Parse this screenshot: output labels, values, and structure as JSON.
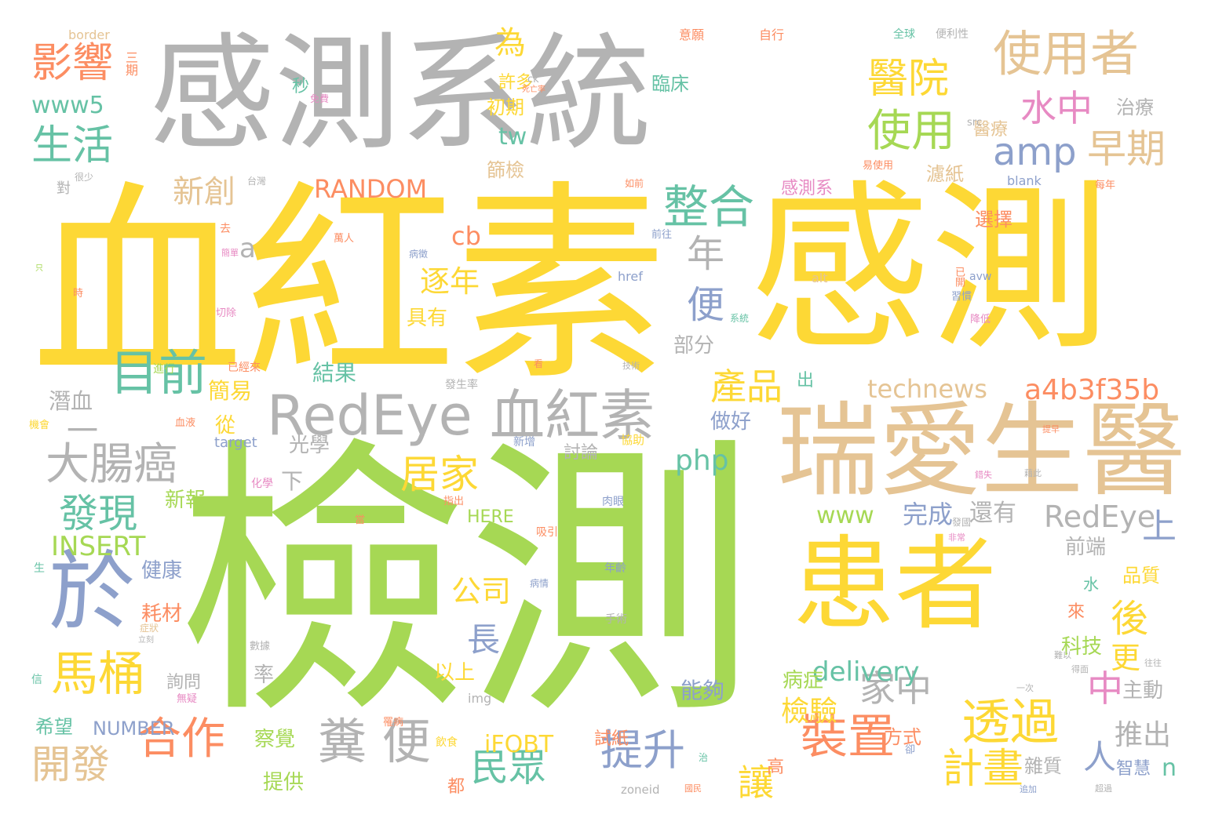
{
  "colors": {
    "yellow": "#fdd835",
    "green": "#a6d854",
    "gray": "#b3b3b3",
    "tan": "#e5c494",
    "orange": "#fc8d62",
    "blue": "#8da0cb",
    "teal": "#66c2a5",
    "pink": "#e78ac3"
  },
  "words": [
    {
      "text": "檢測",
      "c": "green"
    },
    {
      "text": "血紅素",
      "c": "yellow"
    },
    {
      "text": "感測",
      "c": "yellow"
    },
    {
      "text": "感測系統",
      "c": "gray"
    },
    {
      "text": "瑞愛生醫",
      "c": "tan"
    },
    {
      "text": "患者",
      "c": "yellow"
    },
    {
      "text": "RedEye 血紅素",
      "c": "gray"
    },
    {
      "text": "於",
      "c": "blue"
    },
    {
      "text": "使用者",
      "c": "tan"
    },
    {
      "text": "一",
      "c": "gray"
    },
    {
      "text": "目前",
      "c": "teal"
    },
    {
      "text": "大腸癌",
      "c": "gray"
    },
    {
      "text": "糞 便",
      "c": "gray"
    },
    {
      "text": "裝置",
      "c": "orange"
    },
    {
      "text": "透過",
      "c": "yellow"
    },
    {
      "text": "馬桶",
      "c": "yellow"
    },
    {
      "text": "合作",
      "c": "orange"
    },
    {
      "text": "使用",
      "c": "green"
    },
    {
      "text": "整合",
      "c": "teal"
    },
    {
      "text": "影響",
      "c": "orange"
    },
    {
      "text": "生活",
      "c": "teal"
    },
    {
      "text": "醫院",
      "c": "yellow"
    },
    {
      "text": "早期",
      "c": "tan"
    },
    {
      "text": "水中",
      "c": "pink"
    },
    {
      "text": "amp",
      "c": "blue"
    },
    {
      "text": "居家",
      "c": "yellow"
    },
    {
      "text": "提升",
      "c": "blue"
    },
    {
      "text": "民眾",
      "c": "teal"
    },
    {
      "text": "開發",
      "c": "tan"
    },
    {
      "text": "發現",
      "c": "teal"
    },
    {
      "text": "計畫",
      "c": "yellow"
    },
    {
      "text": "產品",
      "c": "yellow"
    },
    {
      "text": "年",
      "c": "gray"
    },
    {
      "text": "新創",
      "c": "tan"
    },
    {
      "text": "家中",
      "c": "gray"
    },
    {
      "text": "a4b3f35b",
      "c": "orange"
    },
    {
      "text": "technews",
      "c": "tan"
    },
    {
      "text": "RedEye",
      "c": "gray"
    },
    {
      "text": "上",
      "c": "blue"
    },
    {
      "text": "中",
      "c": "pink"
    },
    {
      "text": "人",
      "c": "blue"
    },
    {
      "text": "後",
      "c": "yellow"
    },
    {
      "text": "更",
      "c": "yellow"
    },
    {
      "text": "php",
      "c": "teal"
    },
    {
      "text": "delivery",
      "c": "teal"
    },
    {
      "text": "www5",
      "c": "teal"
    },
    {
      "text": "INSERT",
      "c": "green"
    },
    {
      "text": "RANDOM",
      "c": "orange"
    },
    {
      "text": "www",
      "c": "green"
    },
    {
      "text": "公司",
      "c": "yellow"
    },
    {
      "text": "長",
      "c": "blue"
    },
    {
      "text": "逐年",
      "c": "yellow"
    },
    {
      "text": "為",
      "c": "yellow"
    },
    {
      "text": "便",
      "c": "blue"
    },
    {
      "text": "tw",
      "c": "teal"
    },
    {
      "text": "cb",
      "c": "orange"
    },
    {
      "text": "a",
      "c": "gray"
    },
    {
      "text": "讓",
      "c": "yellow"
    },
    {
      "text": "檢驗",
      "c": "yellow"
    },
    {
      "text": "推出",
      "c": "gray"
    },
    {
      "text": "完成",
      "c": "blue"
    },
    {
      "text": "還有",
      "c": "gray"
    },
    {
      "text": "n",
      "c": "teal"
    },
    {
      "text": "NUMBER",
      "c": "blue"
    },
    {
      "text": "iFOBT",
      "c": "yellow"
    },
    {
      "text": "HERE",
      "c": "green"
    },
    {
      "text": "健康",
      "c": "blue"
    },
    {
      "text": "耗材",
      "c": "orange"
    },
    {
      "text": "新報",
      "c": "green"
    },
    {
      "text": "潛血",
      "c": "gray"
    },
    {
      "text": "簡易",
      "c": "yellow"
    },
    {
      "text": "結果",
      "c": "teal"
    },
    {
      "text": "具有",
      "c": "yellow"
    },
    {
      "text": "光學",
      "c": "gray"
    },
    {
      "text": "部分",
      "c": "gray"
    },
    {
      "text": "做好",
      "c": "blue"
    },
    {
      "text": "討論",
      "c": "gray"
    },
    {
      "text": "出",
      "c": "teal"
    },
    {
      "text": "從",
      "c": "yellow"
    },
    {
      "text": "下",
      "c": "gray"
    },
    {
      "text": "以上",
      "c": "yellow"
    },
    {
      "text": "率",
      "c": "gray"
    },
    {
      "text": "能夠",
      "c": "blue"
    },
    {
      "text": "病症",
      "c": "green"
    },
    {
      "text": "察覺",
      "c": "green"
    },
    {
      "text": "提供",
      "c": "green"
    },
    {
      "text": "都",
      "c": "orange"
    },
    {
      "text": "高",
      "c": "orange"
    },
    {
      "text": "方式",
      "c": "orange"
    },
    {
      "text": "科技",
      "c": "green"
    },
    {
      "text": "來",
      "c": "orange"
    },
    {
      "text": "水",
      "c": "teal"
    },
    {
      "text": "品質",
      "c": "yellow"
    },
    {
      "text": "前端",
      "c": "gray"
    },
    {
      "text": "主動",
      "c": "gray"
    },
    {
      "text": "雜質",
      "c": "gray"
    },
    {
      "text": "智慧",
      "c": "blue"
    },
    {
      "text": "詢問",
      "c": "gray"
    },
    {
      "text": "希望",
      "c": "teal"
    },
    {
      "text": "試紙",
      "c": "orange"
    },
    {
      "text": "篩檢",
      "c": "tan"
    },
    {
      "text": "初期",
      "c": "yellow"
    },
    {
      "text": "許多",
      "c": "yellow"
    },
    {
      "text": "秒",
      "c": "teal"
    },
    {
      "text": "臨床",
      "c": "teal"
    },
    {
      "text": "醫療",
      "c": "tan"
    },
    {
      "text": "治療",
      "c": "gray"
    },
    {
      "text": "濾紙",
      "c": "tan"
    },
    {
      "text": "感測系",
      "c": "pink"
    },
    {
      "text": "選擇",
      "c": "orange"
    },
    {
      "text": "border",
      "c": "tan"
    },
    {
      "text": "三期",
      "c": "orange"
    },
    {
      "text": "免費",
      "c": "pink"
    },
    {
      "text": "死亡率",
      "c": "orange"
    },
    {
      "text": "ck",
      "c": "gray"
    },
    {
      "text": "意願",
      "c": "orange"
    },
    {
      "text": "自行",
      "c": "orange"
    },
    {
      "text": "全球",
      "c": "teal"
    },
    {
      "text": "便利性",
      "c": "gray"
    },
    {
      "text": "blank",
      "c": "blue"
    },
    {
      "text": "src",
      "c": "gray"
    },
    {
      "text": "易使用",
      "c": "orange"
    },
    {
      "text": "每年",
      "c": "orange"
    },
    {
      "text": "台灣",
      "c": "gray"
    },
    {
      "text": "很少",
      "c": "gray"
    },
    {
      "text": "對",
      "c": "gray"
    },
    {
      "text": "如前",
      "c": "orange"
    },
    {
      "text": "前往",
      "c": "blue"
    },
    {
      "text": "萬人",
      "c": "orange"
    },
    {
      "text": "病徵",
      "c": "blue"
    },
    {
      "text": "去",
      "c": "orange"
    },
    {
      "text": "簡單",
      "c": "pink"
    },
    {
      "text": "href",
      "c": "blue"
    },
    {
      "text": "alt",
      "c": "tan"
    },
    {
      "text": "avw",
      "c": "blue"
    },
    {
      "text": "切除",
      "c": "pink"
    },
    {
      "text": "降低",
      "c": "pink"
    },
    {
      "text": "習慣",
      "c": "blue"
    },
    {
      "text": "已開",
      "c": "orange"
    },
    {
      "text": "系統",
      "c": "teal"
    },
    {
      "text": "進行",
      "c": "green"
    },
    {
      "text": "已經來",
      "c": "orange"
    },
    {
      "text": "發生率",
      "c": "gray"
    },
    {
      "text": "技術",
      "c": "gray"
    },
    {
      "text": "target",
      "c": "blue"
    },
    {
      "text": "血液",
      "c": "orange"
    },
    {
      "text": "機會",
      "c": "yellow"
    },
    {
      "text": "新增",
      "c": "blue"
    },
    {
      "text": "協助",
      "c": "yellow"
    },
    {
      "text": "化學",
      "c": "pink"
    },
    {
      "text": "指出",
      "c": "orange"
    },
    {
      "text": "肉眼",
      "c": "blue"
    },
    {
      "text": "吸引",
      "c": "orange"
    },
    {
      "text": "發國",
      "c": "gray"
    },
    {
      "text": "非常",
      "c": "pink"
    },
    {
      "text": "年齡",
      "c": "blue"
    },
    {
      "text": "病情",
      "c": "blue"
    },
    {
      "text": "手術",
      "c": "gray"
    },
    {
      "text": "數據",
      "c": "gray"
    },
    {
      "text": "無疑",
      "c": "pink"
    },
    {
      "text": "img",
      "c": "gray"
    },
    {
      "text": "罹病",
      "c": "orange"
    },
    {
      "text": "飲食",
      "c": "yellow"
    },
    {
      "text": "zoneid",
      "c": "gray"
    },
    {
      "text": "國民",
      "c": "orange"
    },
    {
      "text": "追加",
      "c": "blue"
    },
    {
      "text": "超過",
      "c": "gray"
    },
    {
      "text": "難以",
      "c": "gray"
    },
    {
      "text": "一次",
      "c": "gray"
    },
    {
      "text": "往往",
      "c": "gray"
    },
    {
      "text": "錯失",
      "c": "pink"
    },
    {
      "text": "藉此",
      "c": "gray"
    },
    {
      "text": "提早",
      "c": "orange"
    },
    {
      "text": "得面",
      "c": "gray"
    },
    {
      "text": "症狀",
      "c": "tan"
    },
    {
      "text": "立刻",
      "c": "gray"
    },
    {
      "text": "信",
      "c": "teal"
    },
    {
      "text": "生",
      "c": "teal"
    },
    {
      "text": "只",
      "c": "green"
    },
    {
      "text": "時",
      "c": "orange"
    },
    {
      "text": "看",
      "c": "orange"
    },
    {
      "text": "當",
      "c": "orange"
    },
    {
      "text": "卻",
      "c": "blue"
    },
    {
      "text": "治",
      "c": "teal"
    }
  ]
}
